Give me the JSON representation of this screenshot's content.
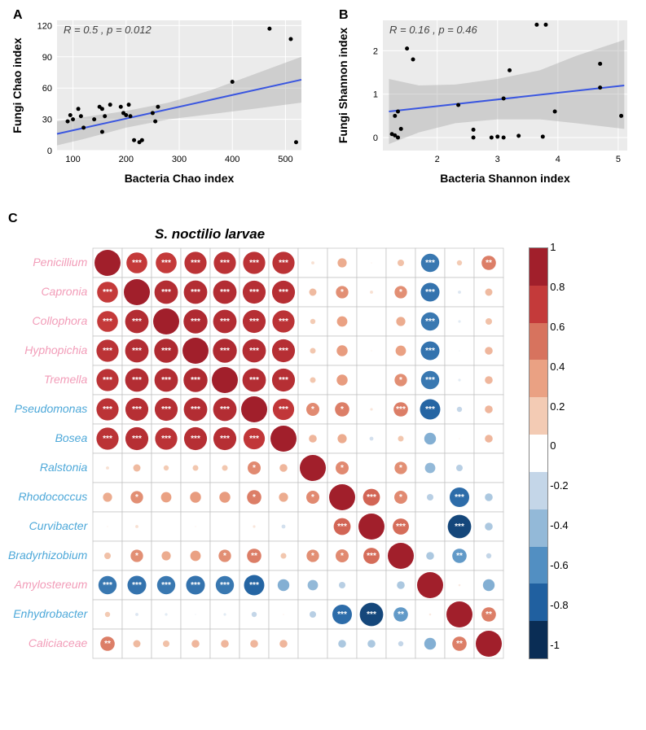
{
  "panelA": {
    "letter": "A",
    "type": "scatter",
    "stats_text": "R = 0.5 , p = 0.012",
    "x_label": "Bacteria Chao index",
    "y_label": "Fungi Chao index",
    "xlim": [
      70,
      530
    ],
    "ylim": [
      0,
      125
    ],
    "x_ticks": [
      100,
      200,
      300,
      400,
      500
    ],
    "y_ticks": [
      0,
      30,
      60,
      90,
      120
    ],
    "line_color": "#3a56e0",
    "ci_color": "#999999",
    "ci_opacity": 0.35,
    "plot_bg": "#ebebeb",
    "grid_color": "#ffffff",
    "point_color": "#000000",
    "point_radius": 2.5,
    "title_fontsize": 14,
    "reg_line": {
      "x0": 70,
      "y0": 16,
      "x1": 530,
      "y1": 68
    },
    "ci_poly": [
      [
        70,
        5
      ],
      [
        120,
        11
      ],
      [
        200,
        22
      ],
      [
        280,
        30
      ],
      [
        360,
        35
      ],
      [
        440,
        40
      ],
      [
        530,
        46
      ],
      [
        530,
        90
      ],
      [
        440,
        73
      ],
      [
        360,
        58
      ],
      [
        280,
        46
      ],
      [
        200,
        38
      ],
      [
        120,
        32
      ],
      [
        70,
        28
      ]
    ],
    "points": [
      [
        90,
        28
      ],
      [
        100,
        30
      ],
      [
        95,
        34
      ],
      [
        110,
        40
      ],
      [
        115,
        33
      ],
      [
        120,
        22
      ],
      [
        140,
        30
      ],
      [
        150,
        42
      ],
      [
        155,
        40
      ],
      [
        160,
        33
      ],
      [
        155,
        18
      ],
      [
        170,
        44
      ],
      [
        190,
        42
      ],
      [
        195,
        36
      ],
      [
        200,
        34
      ],
      [
        205,
        44
      ],
      [
        208,
        33
      ],
      [
        215,
        10
      ],
      [
        225,
        8
      ],
      [
        230,
        10
      ],
      [
        250,
        36
      ],
      [
        255,
        28
      ],
      [
        260,
        42
      ],
      [
        400,
        66
      ],
      [
        470,
        117
      ],
      [
        510,
        107
      ],
      [
        520,
        8
      ]
    ]
  },
  "panelB": {
    "letter": "B",
    "type": "scatter",
    "stats_text": "R = 0.16 , p = 0.46",
    "x_label": "Bacteria Shannon index",
    "y_label": "Fungi Shannon index",
    "xlim": [
      1.1,
      5.15
    ],
    "ylim": [
      -0.3,
      2.7
    ],
    "x_ticks": [
      2,
      3,
      4,
      5
    ],
    "y_ticks": [
      0,
      1,
      2
    ],
    "line_color": "#3a56e0",
    "ci_color": "#999999",
    "ci_opacity": 0.35,
    "plot_bg": "#ebebeb",
    "grid_color": "#ffffff",
    "point_color": "#000000",
    "point_radius": 2.5,
    "title_fontsize": 14,
    "reg_line": {
      "x0": 1.2,
      "y0": 0.6,
      "x1": 5.1,
      "y1": 1.2
    },
    "ci_poly": [
      [
        1.2,
        -0.15
      ],
      [
        1.7,
        0.12
      ],
      [
        2.3,
        0.33
      ],
      [
        3.0,
        0.42
      ],
      [
        3.7,
        0.42
      ],
      [
        4.3,
        0.33
      ],
      [
        5.1,
        0.2
      ],
      [
        5.1,
        2.25
      ],
      [
        4.3,
        1.88
      ],
      [
        3.7,
        1.55
      ],
      [
        3.0,
        1.35
      ],
      [
        2.3,
        1.22
      ],
      [
        1.7,
        1.2
      ],
      [
        1.2,
        1.35
      ]
    ],
    "points": [
      [
        1.25,
        0.08
      ],
      [
        1.3,
        0.05
      ],
      [
        1.3,
        0.5
      ],
      [
        1.35,
        0.0
      ],
      [
        1.35,
        0.6
      ],
      [
        1.4,
        0.2
      ],
      [
        1.5,
        2.05
      ],
      [
        1.6,
        1.8
      ],
      [
        2.35,
        0.75
      ],
      [
        2.6,
        0.0
      ],
      [
        2.6,
        0.18
      ],
      [
        2.9,
        0.0
      ],
      [
        3.0,
        0.02
      ],
      [
        3.1,
        0.0
      ],
      [
        3.2,
        1.55
      ],
      [
        3.35,
        0.04
      ],
      [
        3.75,
        0.02
      ],
      [
        3.1,
        0.9
      ],
      [
        3.65,
        2.6
      ],
      [
        3.8,
        2.6
      ],
      [
        3.95,
        0.6
      ],
      [
        4.7,
        1.15
      ],
      [
        4.7,
        1.7
      ],
      [
        5.05,
        0.5
      ]
    ]
  },
  "panelC": {
    "letter": "C",
    "type": "correlation-heatmap",
    "title": "S. noctilio larvae",
    "row_labels": [
      "Penicillium",
      "Capronia",
      "Collophora",
      "Hyphopichia",
      "Tremella",
      "Pseudomonas",
      "Bosea",
      "Ralstonia",
      "Rhodococcus",
      "Curvibacter",
      "Bradyrhizobium",
      "Amylostereum",
      "Enhydrobacter",
      "Caliciaceae"
    ],
    "row_label_colors": [
      "#f29cb8",
      "#f29cb8",
      "#f29cb8",
      "#f29cb8",
      "#f29cb8",
      "#4da8d9",
      "#4da8d9",
      "#4da8d9",
      "#4da8d9",
      "#4da8d9",
      "#4da8d9",
      "#f29cb8",
      "#4da8d9",
      "#f29cb8"
    ],
    "label_fontsize": 14,
    "cell_size": 36,
    "grid_color": "#c0c0c0",
    "sig_star_color": "#ffffff",
    "colorbar": {
      "ticks": [
        1,
        0.8,
        0.6,
        0.4,
        0.2,
        0,
        -0.2,
        -0.4,
        -0.6,
        -0.8,
        -1
      ],
      "colors": [
        "#a11f2b",
        "#c43a3a",
        "#d7735e",
        "#eaa183",
        "#f3cbb4",
        "#ffffff",
        "#c4d6e8",
        "#93b9d8",
        "#528fc2",
        "#2060a0",
        "#0a2d55"
      ]
    },
    "matrix": [
      [
        1.0,
        0.8,
        0.8,
        0.85,
        0.85,
        0.85,
        0.85,
        0.12,
        0.35,
        0.05,
        0.25,
        -0.7,
        0.2,
        0.55
      ],
      [
        0.8,
        1.0,
        0.9,
        0.9,
        0.9,
        0.88,
        0.88,
        0.28,
        0.48,
        0.12,
        0.48,
        -0.72,
        -0.12,
        0.28
      ],
      [
        0.8,
        0.9,
        1.0,
        0.92,
        0.9,
        0.88,
        0.85,
        0.2,
        0.4,
        0.02,
        0.35,
        -0.7,
        -0.1,
        0.25
      ],
      [
        0.85,
        0.9,
        0.92,
        1.0,
        0.92,
        0.9,
        0.88,
        0.22,
        0.42,
        0.05,
        0.4,
        -0.72,
        -0.05,
        0.3
      ],
      [
        0.85,
        0.9,
        0.9,
        0.92,
        1.0,
        0.9,
        0.88,
        0.22,
        0.42,
        0.02,
        0.48,
        -0.7,
        -0.1,
        0.3
      ],
      [
        0.85,
        0.88,
        0.88,
        0.9,
        0.9,
        1.0,
        0.82,
        0.5,
        0.55,
        0.1,
        0.55,
        -0.78,
        -0.2,
        0.3
      ],
      [
        0.85,
        0.88,
        0.85,
        0.88,
        0.88,
        0.82,
        1.0,
        0.3,
        0.35,
        -0.15,
        0.22,
        -0.45,
        0.05,
        0.3
      ],
      [
        0.12,
        0.28,
        0.2,
        0.22,
        0.22,
        0.5,
        0.3,
        1.0,
        0.5,
        0.02,
        0.48,
        -0.4,
        -0.25,
        0.02
      ],
      [
        0.35,
        0.48,
        0.4,
        0.42,
        0.42,
        0.55,
        0.35,
        0.5,
        1.0,
        0.65,
        0.5,
        -0.25,
        -0.75,
        -0.3
      ],
      [
        0.05,
        0.12,
        0.02,
        0.05,
        0.02,
        0.1,
        -0.15,
        0.02,
        0.65,
        1.0,
        0.62,
        -0.02,
        -0.9,
        -0.3
      ],
      [
        0.25,
        0.48,
        0.35,
        0.4,
        0.48,
        0.55,
        0.22,
        0.48,
        0.5,
        0.62,
        1.0,
        -0.3,
        -0.55,
        -0.2
      ],
      [
        -0.7,
        -0.72,
        -0.7,
        -0.72,
        -0.7,
        -0.78,
        -0.45,
        -0.4,
        -0.25,
        -0.02,
        -0.3,
        1.0,
        0.08,
        -0.45
      ],
      [
        0.2,
        -0.12,
        -0.1,
        -0.05,
        -0.1,
        -0.2,
        0.05,
        -0.25,
        -0.75,
        -0.9,
        -0.55,
        0.08,
        1.0,
        0.55
      ],
      [
        0.55,
        0.28,
        0.25,
        0.3,
        0.3,
        0.3,
        0.3,
        0.02,
        -0.3,
        -0.3,
        -0.2,
        -0.45,
        0.55,
        1.0
      ]
    ],
    "sig": [
      [
        "",
        "***",
        "***",
        "***",
        "***",
        "***",
        "***",
        "",
        "",
        "",
        "",
        "***",
        "",
        "**"
      ],
      [
        "***",
        "",
        "***",
        "***",
        "***",
        "***",
        "***",
        "",
        "*",
        "",
        "*",
        "***",
        "",
        ""
      ],
      [
        "***",
        "***",
        "",
        "***",
        "***",
        "***",
        "***",
        "",
        "",
        "",
        "",
        "***",
        "",
        ""
      ],
      [
        "***",
        "***",
        "***",
        "",
        "***",
        "***",
        "***",
        "",
        "",
        "",
        "",
        "***",
        "",
        ""
      ],
      [
        "***",
        "***",
        "***",
        "***",
        "",
        "***",
        "***",
        "",
        "",
        "",
        "*",
        "***",
        "",
        ""
      ],
      [
        "***",
        "***",
        "***",
        "***",
        "***",
        "",
        "***",
        "*",
        "*",
        "",
        "***",
        "***",
        "",
        ""
      ],
      [
        "***",
        "***",
        "***",
        "***",
        "***",
        "***",
        "",
        "",
        "",
        "",
        "",
        "",
        "",
        ""
      ],
      [
        "",
        "",
        "",
        "",
        "",
        "*",
        "",
        "",
        "*",
        "",
        "*",
        "",
        "",
        ""
      ],
      [
        "",
        "*",
        "",
        "",
        "",
        "*",
        "",
        "*",
        "",
        "***",
        "*",
        "",
        "***",
        ""
      ],
      [
        "",
        "",
        "",
        "",
        "",
        "",
        "",
        "",
        "***",
        "",
        "***",
        "",
        "***",
        ""
      ],
      [
        "",
        "*",
        "",
        "",
        "*",
        "**",
        "",
        "*",
        "*",
        "***",
        "",
        "",
        "**",
        ""
      ],
      [
        "***",
        "***",
        "***",
        "***",
        "***",
        "***",
        "",
        "",
        "",
        "",
        "",
        "",
        "",
        ""
      ],
      [
        "",
        "",
        "",
        "",
        "",
        "",
        "",
        "",
        "***",
        "***",
        "**",
        "",
        "",
        "**"
      ],
      [
        "**",
        "",
        "",
        "",
        "",
        "",
        "",
        "",
        "",
        "",
        "",
        "",
        "**",
        ""
      ]
    ]
  }
}
